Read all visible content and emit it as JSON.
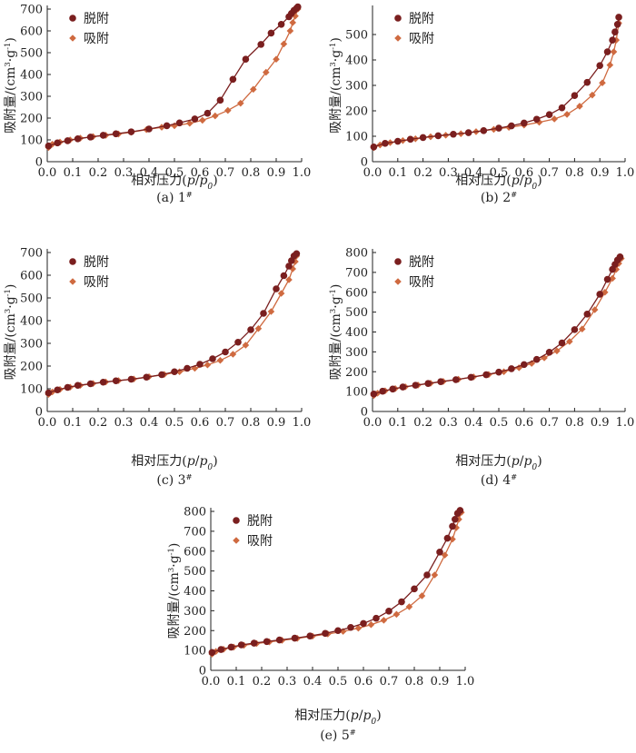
{
  "colors": {
    "desorption": "#7a1f1f",
    "adsorption": "#cf6a40",
    "axis": "#222222"
  },
  "chart_data": [
    {
      "type": "line",
      "caption": "(a) 1#",
      "xlabel": "相对压力(p/p0)",
      "ylabel": "吸附量/(cm3·g-1)",
      "xlim": [
        0,
        1.0
      ],
      "ylim": [
        0,
        700
      ],
      "xticks": [
        "0.0",
        "0.1",
        "0.2",
        "0.3",
        "0.4",
        "0.5",
        "0.6",
        "0.7",
        "0.8",
        "0.9",
        "1.0"
      ],
      "yticks": [
        "0",
        "100",
        "200",
        "300",
        "400",
        "500",
        "600",
        "700"
      ],
      "legend": [
        "脱附",
        "吸附"
      ],
      "series": [
        {
          "name": "脱附",
          "marker": "circle",
          "x": [
            0.005,
            0.04,
            0.08,
            0.12,
            0.17,
            0.22,
            0.27,
            0.33,
            0.4,
            0.47,
            0.52,
            0.58,
            0.63,
            0.68,
            0.73,
            0.78,
            0.84,
            0.88,
            0.92,
            0.95,
            0.96,
            0.97,
            0.98,
            0.985
          ],
          "y": [
            72,
            86,
            96,
            105,
            113,
            121,
            128,
            137,
            150,
            165,
            178,
            196,
            222,
            282,
            378,
            470,
            538,
            590,
            630,
            665,
            680,
            694,
            704,
            710
          ]
        },
        {
          "name": "吸附",
          "marker": "diamond",
          "x": [
            0.005,
            0.02,
            0.05,
            0.09,
            0.13,
            0.18,
            0.23,
            0.28,
            0.33,
            0.39,
            0.45,
            0.5,
            0.56,
            0.61,
            0.66,
            0.71,
            0.76,
            0.81,
            0.86,
            0.9,
            0.93,
            0.955,
            0.965,
            0.975,
            0.985
          ],
          "y": [
            65,
            80,
            90,
            100,
            108,
            115,
            121,
            127,
            135,
            147,
            158,
            165,
            176,
            190,
            210,
            235,
            268,
            332,
            410,
            470,
            540,
            600,
            638,
            668,
            700
          ]
        }
      ]
    },
    {
      "type": "line",
      "caption": "(b) 2#",
      "xlabel": "相对压力(p/p0)",
      "ylabel": "吸附量/(cm3·g-1)",
      "xlim": [
        0,
        1.0
      ],
      "ylim": [
        0,
        600
      ],
      "xticks": [
        "0.0",
        "0.1",
        "0.2",
        "0.3",
        "0.4",
        "0.5",
        "0.6",
        "0.7",
        "0.8",
        "0.9",
        "1.0"
      ],
      "yticks": [
        "0",
        "100",
        "200",
        "300",
        "400",
        "500"
      ],
      "legend": [
        "脱附",
        "吸附"
      ],
      "series": [
        {
          "name": "脱附",
          "marker": "circle",
          "x": [
            0.005,
            0.05,
            0.1,
            0.15,
            0.2,
            0.26,
            0.32,
            0.38,
            0.44,
            0.5,
            0.55,
            0.6,
            0.65,
            0.7,
            0.75,
            0.8,
            0.85,
            0.9,
            0.93,
            0.95,
            0.96,
            0.97,
            0.975
          ],
          "y": [
            58,
            72,
            80,
            88,
            95,
            102,
            108,
            114,
            122,
            132,
            141,
            152,
            167,
            185,
            212,
            260,
            312,
            378,
            432,
            478,
            510,
            540,
            568
          ]
        },
        {
          "name": "吸附",
          "marker": "diamond",
          "x": [
            0.005,
            0.03,
            0.07,
            0.12,
            0.17,
            0.23,
            0.29,
            0.35,
            0.41,
            0.48,
            0.54,
            0.6,
            0.66,
            0.72,
            0.77,
            0.82,
            0.87,
            0.91,
            0.94,
            0.955,
            0.965,
            0.975
          ],
          "y": [
            55,
            66,
            75,
            83,
            90,
            98,
            104,
            110,
            118,
            127,
            135,
            144,
            155,
            168,
            186,
            218,
            262,
            310,
            380,
            432,
            478,
            545
          ]
        }
      ]
    },
    {
      "type": "line",
      "caption": "(c) 3#",
      "xlabel": "相对压力(p/p0)",
      "ylabel": "吸附量/(cm3·g-1)",
      "xlim": [
        0,
        1.0
      ],
      "ylim": [
        0,
        700
      ],
      "xticks": [
        "0.0",
        "0.1",
        "0.2",
        "0.3",
        "0.4",
        "0.5",
        "0.6",
        "0.7",
        "0.8",
        "0.9",
        "1.0"
      ],
      "yticks": [
        "0",
        "100",
        "200",
        "300",
        "400",
        "500",
        "600",
        "700"
      ],
      "legend": [
        "脱附",
        "吸附"
      ],
      "series": [
        {
          "name": "脱附",
          "marker": "circle",
          "x": [
            0.005,
            0.04,
            0.08,
            0.12,
            0.17,
            0.22,
            0.27,
            0.33,
            0.39,
            0.45,
            0.5,
            0.55,
            0.6,
            0.65,
            0.7,
            0.75,
            0.8,
            0.85,
            0.9,
            0.93,
            0.95,
            0.96,
            0.97,
            0.98
          ],
          "y": [
            82,
            95,
            106,
            115,
            122,
            129,
            135,
            142,
            151,
            162,
            175,
            190,
            208,
            232,
            262,
            305,
            360,
            432,
            540,
            598,
            640,
            664,
            685,
            695
          ]
        },
        {
          "name": "吸附",
          "marker": "diamond",
          "x": [
            0.005,
            0.02,
            0.05,
            0.09,
            0.13,
            0.18,
            0.23,
            0.28,
            0.34,
            0.4,
            0.46,
            0.52,
            0.58,
            0.63,
            0.68,
            0.73,
            0.78,
            0.83,
            0.88,
            0.92,
            0.95,
            0.965,
            0.975,
            0.98
          ],
          "y": [
            75,
            86,
            97,
            107,
            115,
            123,
            130,
            136,
            143,
            153,
            163,
            175,
            190,
            205,
            225,
            252,
            292,
            365,
            440,
            520,
            580,
            628,
            660,
            685
          ]
        }
      ]
    },
    {
      "type": "line",
      "caption": "(d) 4#",
      "xlabel": "相对压力(p/p0)",
      "ylabel": "吸附量/(cm3·g-1)",
      "xlim": [
        0,
        1.0
      ],
      "ylim": [
        0,
        800
      ],
      "xticks": [
        "0.0",
        "0.1",
        "0.2",
        "0.3",
        "0.4",
        "0.5",
        "0.6",
        "0.7",
        "0.8",
        "0.9",
        "1.0"
      ],
      "yticks": [
        "0",
        "100",
        "200",
        "300",
        "400",
        "500",
        "600",
        "700",
        "800"
      ],
      "legend": [
        "脱附",
        "吸附"
      ],
      "series": [
        {
          "name": "脱附",
          "marker": "circle",
          "x": [
            0.005,
            0.04,
            0.08,
            0.12,
            0.17,
            0.22,
            0.27,
            0.33,
            0.39,
            0.45,
            0.5,
            0.55,
            0.6,
            0.65,
            0.7,
            0.75,
            0.8,
            0.85,
            0.9,
            0.93,
            0.95,
            0.96,
            0.97,
            0.98
          ],
          "y": [
            88,
            102,
            113,
            123,
            132,
            141,
            150,
            160,
            172,
            185,
            198,
            215,
            236,
            262,
            298,
            345,
            412,
            490,
            590,
            665,
            715,
            740,
            762,
            778
          ]
        },
        {
          "name": "吸附",
          "marker": "diamond",
          "x": [
            0.005,
            0.02,
            0.05,
            0.09,
            0.13,
            0.18,
            0.23,
            0.28,
            0.34,
            0.4,
            0.46,
            0.52,
            0.58,
            0.63,
            0.68,
            0.73,
            0.78,
            0.83,
            0.88,
            0.92,
            0.95,
            0.965,
            0.975,
            0.985
          ],
          "y": [
            80,
            92,
            104,
            115,
            124,
            133,
            142,
            151,
            162,
            174,
            186,
            200,
            220,
            242,
            270,
            305,
            352,
            415,
            512,
            600,
            670,
            715,
            745,
            770
          ]
        }
      ]
    },
    {
      "type": "line",
      "caption": "(e) 5#",
      "xlabel": "相对压力(p/p0)",
      "ylabel": "吸附量/(cm3·g-1)",
      "xlim": [
        0,
        1.0
      ],
      "ylim": [
        0,
        800
      ],
      "xticks": [
        "0.0",
        "0.1",
        "0.2",
        "0.3",
        "0.4",
        "0.5",
        "0.6",
        "0.7",
        "0.8",
        "0.9",
        "1.0"
      ],
      "yticks": [
        "0",
        "100",
        "200",
        "300",
        "400",
        "500",
        "600",
        "700",
        "800"
      ],
      "legend": [
        "脱附",
        "吸附"
      ],
      "series": [
        {
          "name": "脱附",
          "marker": "circle",
          "x": [
            0.005,
            0.04,
            0.08,
            0.12,
            0.17,
            0.22,
            0.27,
            0.33,
            0.39,
            0.45,
            0.5,
            0.55,
            0.6,
            0.65,
            0.7,
            0.75,
            0.8,
            0.85,
            0.9,
            0.93,
            0.95,
            0.96,
            0.97,
            0.98
          ],
          "y": [
            90,
            105,
            117,
            128,
            137,
            145,
            153,
            162,
            173,
            186,
            200,
            216,
            236,
            262,
            298,
            345,
            410,
            480,
            595,
            665,
            725,
            760,
            790,
            805
          ]
        },
        {
          "name": "吸附",
          "marker": "diamond",
          "x": [
            0.005,
            0.02,
            0.05,
            0.09,
            0.13,
            0.18,
            0.23,
            0.28,
            0.34,
            0.4,
            0.46,
            0.52,
            0.58,
            0.63,
            0.68,
            0.73,
            0.78,
            0.83,
            0.88,
            0.92,
            0.95,
            0.965,
            0.975,
            0.985
          ],
          "y": [
            82,
            95,
            106,
            117,
            126,
            135,
            143,
            151,
            161,
            172,
            183,
            196,
            212,
            230,
            252,
            282,
            320,
            375,
            480,
            580,
            660,
            718,
            760,
            795
          ]
        }
      ]
    }
  ]
}
